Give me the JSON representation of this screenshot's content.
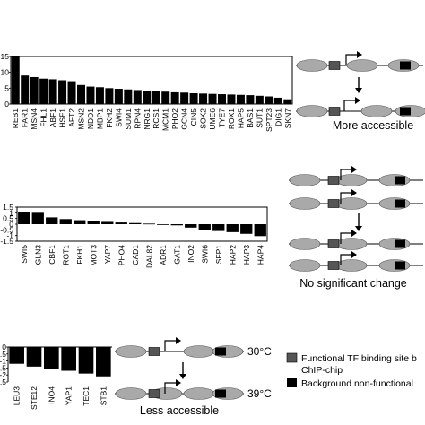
{
  "chart_data": [
    {
      "type": "bar",
      "ylim": [
        0,
        15
      ],
      "yticks": [
        "15",
        "10",
        "5",
        "0"
      ],
      "categories": [
        "REB1",
        "FAR1",
        "MSN4",
        "FHL1",
        "ABF1",
        "HSF1",
        "AFT2",
        "MSN2",
        "NDD1",
        "MBP1",
        "FKH2",
        "SWI4",
        "SUM1",
        "RPN4",
        "NRG1",
        "RCS1",
        "MCM1",
        "PHO2",
        "GCN4",
        "CIN5",
        "SOK2",
        "UME6",
        "TYE7",
        "ROX1",
        "HAP5",
        "BAS1",
        "SUT1",
        "SPT23",
        "DIG1",
        "SKN7"
      ],
      "values": [
        15.5,
        9,
        8.5,
        8,
        7.8,
        7.5,
        7.2,
        6,
        5.5,
        5.3,
        5,
        4.8,
        4.6,
        4.4,
        4.2,
        4,
        3.9,
        3.7,
        3.6,
        3.4,
        3.3,
        3.2,
        3.1,
        3,
        2.9,
        2.8,
        2.6,
        2.4,
        2.0,
        1.5
      ]
    },
    {
      "type": "bar",
      "ylim": [
        -1.5,
        1.5
      ],
      "yticks": [
        "1.5",
        "1",
        "0.5",
        "0",
        "-0.5",
        "-1",
        "-1.5"
      ],
      "categories": [
        "SWI5",
        "GLN3",
        "CBF1",
        "RGT1",
        "FKH1",
        "MOT3",
        "YAP7",
        "PHO4",
        "CAD1",
        "DAL82",
        "ADR1",
        "GAT1",
        "INO2",
        "SWI6",
        "SFP1",
        "HAP2",
        "HAP3",
        "HAP4"
      ],
      "values": [
        1.1,
        1.0,
        0.6,
        0.45,
        0.35,
        0.3,
        0.2,
        0.15,
        0.1,
        0.05,
        -0.05,
        -0.1,
        -0.3,
        -0.55,
        -0.6,
        -0.7,
        -0.85,
        -1.05
      ]
    },
    {
      "type": "bar",
      "ylim": [
        -2.5,
        0
      ],
      "yticks": [
        "0",
        "-0.5",
        "-1",
        "-1.5",
        "-2",
        "-2.5"
      ],
      "categories": [
        "LEU3",
        "STE12",
        "INO4",
        "YAP1",
        "TEC1",
        "STB1"
      ],
      "values": [
        -1.2,
        -1.4,
        -1.6,
        -1.7,
        -1.9,
        -2.1
      ]
    }
  ],
  "diagrams": {
    "top_caption": "More accessible",
    "middle_caption": "No significant change",
    "bottom_caption": "Less accessible",
    "temp_30": "30°C",
    "temp_39": "39°C"
  },
  "legend": {
    "item1_line1": "Functional TF binding site b",
    "item1_line2": "ChIP-chip",
    "item2": "Background non-functional",
    "colors": {
      "functional": "#555555",
      "background": "#000000",
      "nucleosome": "#a9a9a9"
    }
  }
}
